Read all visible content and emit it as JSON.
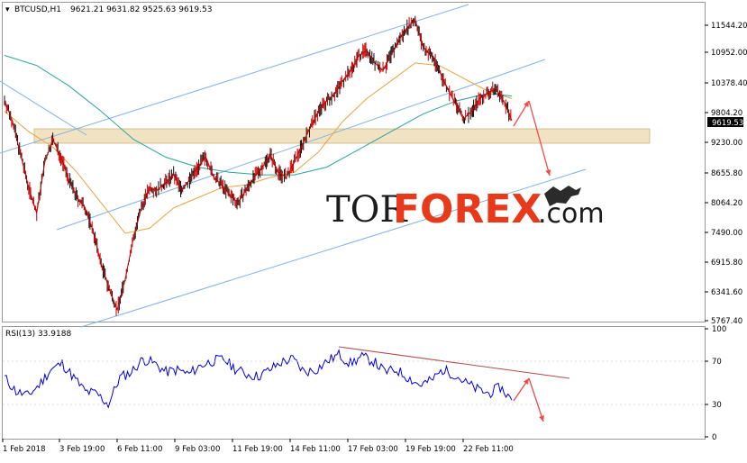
{
  "header": {
    "symbol": "BTCUSD,H1",
    "ohlc": "9621.21 9631.82 9525.63 9619.53",
    "rsi_label": "RSI(13) 33.9188"
  },
  "current_price": "9619.53",
  "watermark": {
    "tor": "TOR",
    "forex": "FOREX",
    "com": ".com"
  },
  "colors": {
    "candles": "#cc0000",
    "ma_fast": "#e8a33d",
    "ma_slow": "#2aa39a",
    "trend_lines": "#7fb2e5",
    "zone": "#f1e3c2",
    "arrows": "#ef4a4a",
    "rsi_line": "#0000dd",
    "rsi_trend": "#b24d4d"
  },
  "chart_data": [
    {
      "type": "line",
      "title": "BTCUSD,H1",
      "y_ticks": [
        "11544.20",
        "10952.00",
        "10378.40",
        "9804.20",
        "9230.00",
        "8655.80",
        "8064.20",
        "7490.00",
        "6915.80",
        "6341.60",
        "5767.40"
      ],
      "x_ticks": [
        "1 Feb 2018",
        "3 Feb 19:00",
        "6 Feb 11:00",
        "9 Feb 03:00",
        "11 Feb 19:00",
        "14 Feb 11:00",
        "17 Feb 03:00",
        "19 Feb 19:00",
        "22 Feb 11:00"
      ],
      "ylim": [
        5700,
        11900
      ],
      "price_path": [
        [
          0,
          10020
        ],
        [
          1,
          9600
        ],
        [
          2,
          8950
        ],
        [
          3,
          8300
        ],
        [
          4,
          7800
        ],
        [
          5,
          8800
        ],
        [
          6,
          9250
        ],
        [
          7,
          8900
        ],
        [
          8,
          8450
        ],
        [
          9,
          8100
        ],
        [
          10,
          7900
        ],
        [
          11,
          7450
        ],
        [
          12,
          6800
        ],
        [
          13,
          6300
        ],
        [
          14,
          5900
        ],
        [
          15,
          6500
        ],
        [
          16,
          7300
        ],
        [
          17,
          7900
        ],
        [
          18,
          8300
        ],
        [
          19,
          8250
        ],
        [
          20,
          8400
        ],
        [
          21,
          8550
        ],
        [
          22,
          8250
        ],
        [
          23,
          8450
        ],
        [
          24,
          8700
        ],
        [
          25,
          8900
        ],
        [
          26,
          8500
        ],
        [
          27,
          8350
        ],
        [
          28,
          8150
        ],
        [
          29,
          8000
        ],
        [
          30,
          8250
        ],
        [
          31,
          8500
        ],
        [
          32,
          8700
        ],
        [
          33,
          8950
        ],
        [
          34,
          8600
        ],
        [
          35,
          8500
        ],
        [
          36,
          8800
        ],
        [
          37,
          9150
        ],
        [
          38,
          9500
        ],
        [
          39,
          9800
        ],
        [
          40,
          10000
        ],
        [
          41,
          10150
        ],
        [
          42,
          10400
        ],
        [
          43,
          10600
        ],
        [
          44,
          10900
        ],
        [
          45,
          11000
        ],
        [
          46,
          10750
        ],
        [
          47,
          10600
        ],
        [
          48,
          10900
        ],
        [
          49,
          11200
        ],
        [
          50,
          11450
        ],
        [
          51,
          11600
        ],
        [
          52,
          11050
        ],
        [
          53,
          10900
        ],
        [
          54,
          10600
        ],
        [
          55,
          10250
        ],
        [
          56,
          9950
        ],
        [
          57,
          9650
        ],
        [
          58,
          9800
        ],
        [
          59,
          10050
        ],
        [
          60,
          10150
        ],
        [
          61,
          10250
        ],
        [
          62,
          10000
        ],
        [
          63,
          9619.53
        ]
      ],
      "ma_fast": [
        [
          0,
          9800
        ],
        [
          3,
          9400
        ],
        [
          6,
          9100
        ],
        [
          9,
          8600
        ],
        [
          12,
          8000
        ],
        [
          15,
          7400
        ],
        [
          18,
          7500
        ],
        [
          21,
          7900
        ],
        [
          24,
          8100
        ],
        [
          27,
          8300
        ],
        [
          30,
          8350
        ],
        [
          33,
          8500
        ],
        [
          36,
          8600
        ],
        [
          39,
          9000
        ],
        [
          42,
          9600
        ],
        [
          45,
          10050
        ],
        [
          48,
          10400
        ],
        [
          51,
          10750
        ],
        [
          54,
          10700
        ],
        [
          57,
          10450
        ],
        [
          60,
          10200
        ],
        [
          63,
          10050
        ]
      ],
      "ma_slow": [
        [
          0,
          10900
        ],
        [
          4,
          10700
        ],
        [
          8,
          10300
        ],
        [
          12,
          9800
        ],
        [
          16,
          9250
        ],
        [
          20,
          8900
        ],
        [
          24,
          8700
        ],
        [
          28,
          8600
        ],
        [
          32,
          8550
        ],
        [
          36,
          8550
        ],
        [
          40,
          8700
        ],
        [
          44,
          9050
        ],
        [
          48,
          9400
        ],
        [
          52,
          9750
        ],
        [
          56,
          10000
        ],
        [
          60,
          10150
        ],
        [
          63,
          10100
        ]
      ]
    },
    {
      "type": "line",
      "title": "RSI(13) 33.9188",
      "y_ticks": [
        "100",
        "70",
        "30",
        "0"
      ],
      "ylim": [
        0,
        100
      ],
      "rsi_path": [
        [
          0,
          55
        ],
        [
          1,
          42
        ],
        [
          2,
          38
        ],
        [
          3,
          48
        ],
        [
          4,
          62
        ],
        [
          5,
          68
        ],
        [
          6,
          55
        ],
        [
          7,
          42
        ],
        [
          8,
          40
        ],
        [
          9,
          30
        ],
        [
          10,
          55
        ],
        [
          11,
          60
        ],
        [
          12,
          72
        ],
        [
          13,
          68
        ],
        [
          14,
          60
        ],
        [
          15,
          62
        ],
        [
          16,
          58
        ],
        [
          17,
          66
        ],
        [
          18,
          70
        ],
        [
          19,
          72
        ],
        [
          20,
          63
        ],
        [
          21,
          58
        ],
        [
          22,
          56
        ],
        [
          23,
          62
        ],
        [
          24,
          69
        ],
        [
          25,
          72
        ],
        [
          26,
          60
        ],
        [
          27,
          62
        ],
        [
          28,
          70
        ],
        [
          29,
          76
        ],
        [
          30,
          68
        ],
        [
          31,
          74
        ],
        [
          32,
          70
        ],
        [
          33,
          60
        ],
        [
          34,
          62
        ],
        [
          35,
          55
        ],
        [
          36,
          48
        ],
        [
          37,
          52
        ],
        [
          38,
          62
        ],
        [
          39,
          58
        ],
        [
          40,
          50
        ],
        [
          41,
          44
        ],
        [
          42,
          40
        ],
        [
          43,
          46
        ],
        [
          44,
          33.9
        ]
      ]
    }
  ]
}
